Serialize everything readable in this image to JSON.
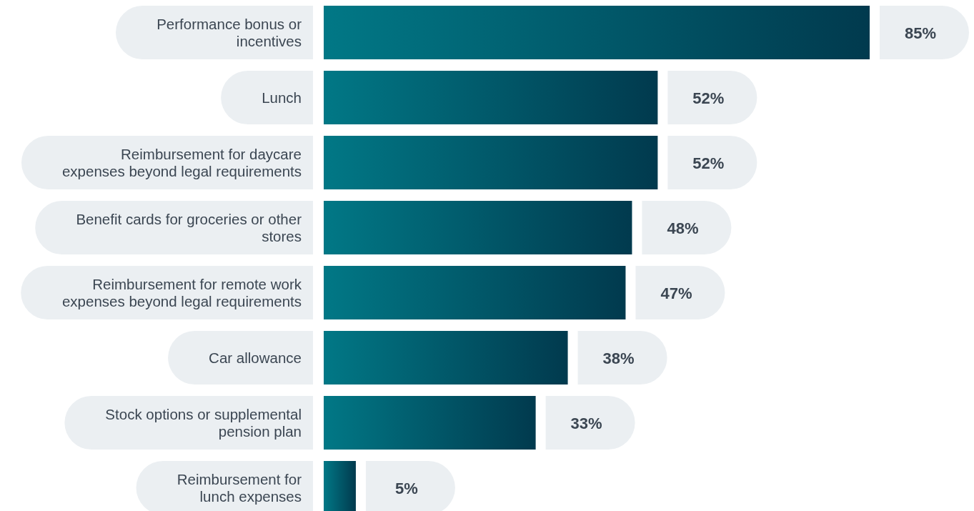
{
  "chart_data": {
    "type": "bar",
    "orientation": "horizontal",
    "categories": [
      "Performance bonus or\nincentives",
      "Lunch",
      "Reimbursement for daycare\nexpenses beyond legal requirements",
      "Benefit cards for groceries or other\nstores",
      "Reimbursement for remote work\nexpenses beyond legal requirements",
      "Car allowance",
      "Stock options or supplemental\npension plan",
      "Reimbursement for\nlunch expenses"
    ],
    "values": [
      85,
      52,
      52,
      48,
      47,
      38,
      33,
      5
    ],
    "value_labels": [
      "85%",
      "52%",
      "52%",
      "48%",
      "47%",
      "38%",
      "33%",
      "5%"
    ],
    "color": "#01506c"
  }
}
